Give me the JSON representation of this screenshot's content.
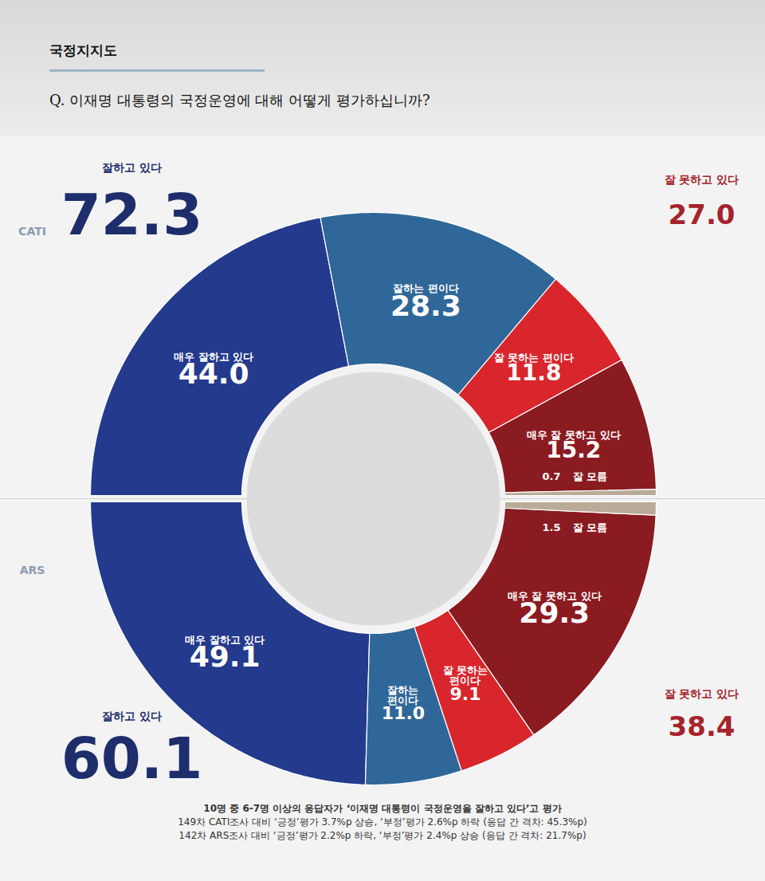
{
  "chart_data": {
    "type": "donut",
    "title": "국정지지도",
    "subtitle": "Q. 이재명 대통령의 국정운영에 대해 어떻게 평가하십니까?",
    "categories": [
      "매우 잘하고 있다",
      "잘하는 편이다",
      "잘 못하는 편이다",
      "매우 잘 못하고 있다",
      "잘 모름"
    ],
    "colors": [
      "#243a8c",
      "#2f6798",
      "#d8262c",
      "#8a1b21",
      "#b9ab97"
    ],
    "series": [
      {
        "name": "CATI",
        "values": [
          44.0,
          28.3,
          11.8,
          15.2,
          0.7
        ],
        "value_labels": [
          "44.0",
          "28.3",
          "11.8",
          "15.2",
          "0.7"
        ],
        "totals": [
          {
            "label": "잘하고 있다",
            "value": 72.3,
            "value_label": "72.3"
          },
          {
            "label": "잘 못하고 있다",
            "value": 27.0,
            "value_label": "27.0"
          }
        ]
      },
      {
        "name": "ARS",
        "values": [
          49.1,
          11.0,
          9.1,
          29.3,
          1.5
        ],
        "value_labels": [
          "49.1",
          "11.0",
          "9.1",
          "29.3",
          "1.5"
        ],
        "totals": [
          {
            "label": "잘하고 있다",
            "value": 60.1,
            "value_label": "60.1"
          },
          {
            "label": "잘 못하고 있다",
            "value": 38.4,
            "value_label": "38.4"
          }
        ]
      }
    ],
    "data_labels": true,
    "caption": [
      "10명 중 6-7명 이상의 응답자가 ‘이재명 대통령이 국정운영을 잘하고 있다’고 평가",
      "149차 CATI조사 대비 ‘긍정’평가 3.7%p 상승, ‘부정’평가 2.6%p 하락 (응답 간 격차: 45.3%p)",
      "142차 ARS조사 대비 ‘긍정’평가 2.2%p 하락, ‘부정’평가 2.4%p 상승 (응답 간 격차: 21.7%p)"
    ]
  }
}
